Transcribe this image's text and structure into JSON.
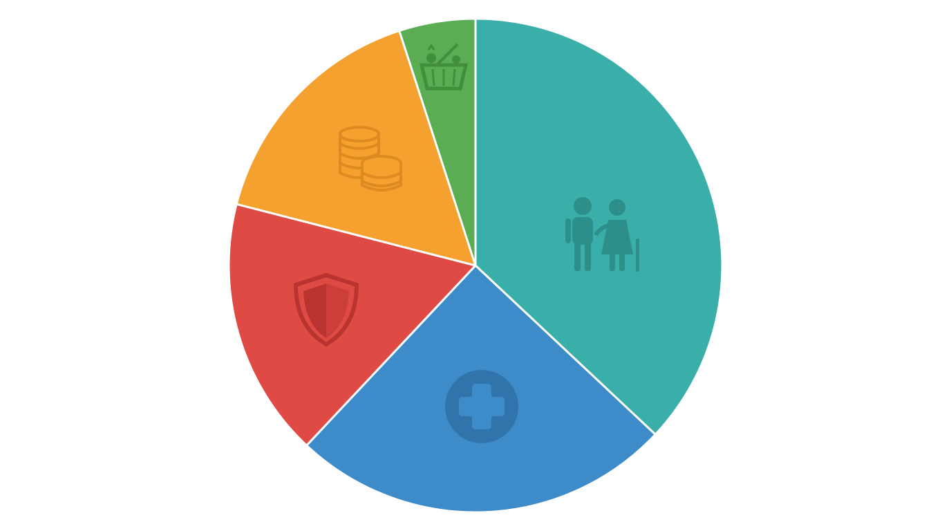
{
  "chart_data": {
    "type": "pie",
    "values": [
      37,
      25,
      17,
      16,
      5
    ],
    "colors": [
      "#3aafa9",
      "#3d8bc9",
      "#e04a45",
      "#f4a12f",
      "#5aad52"
    ]
  }
}
